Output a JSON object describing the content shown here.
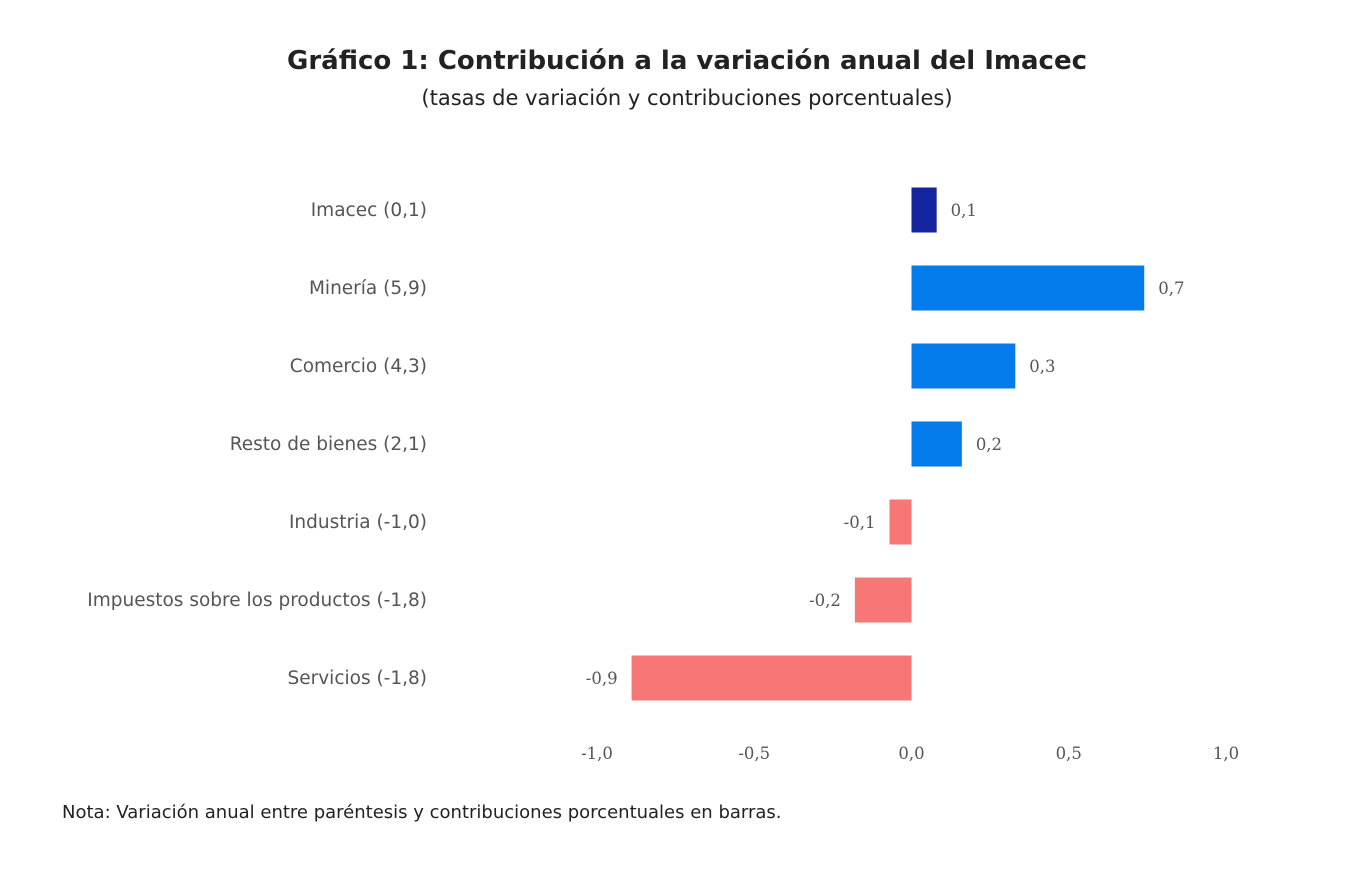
{
  "chart_data": {
    "type": "bar",
    "orientation": "horizontal",
    "title": "Gráfico 1: Contribución a la variación anual del Imacec",
    "subtitle": "(tasas de variación y contribuciones porcentuales)",
    "categories": [
      "Imacec (0,1)",
      "Minería (5,9)",
      "Comercio (4,3)",
      "Resto de bienes (2,1)",
      "Industria (-1,0)",
      "Impuestos sobre los productos (-1,8)",
      "Servicios (-1,8)"
    ],
    "values": [
      0.08,
      0.74,
      0.33,
      0.16,
      -0.07,
      -0.18,
      -0.89
    ],
    "data_labels": [
      "0,1",
      "0,7",
      "0,3",
      "0,2",
      "-0,1",
      "-0,2",
      "-0,9"
    ],
    "colors": [
      "#13249e",
      "#037bea",
      "#037bea",
      "#037bea",
      "#f77777",
      "#f77777",
      "#f77777"
    ],
    "xlim": [
      -1.0,
      1.0
    ],
    "xticks": [
      -1.0,
      -0.5,
      0.0,
      0.5,
      1.0
    ],
    "xtick_labels": [
      "-1,0",
      "-0,5",
      "0,0",
      "0,5",
      "1,0"
    ],
    "grid": false,
    "xlabel": "",
    "ylabel": ""
  },
  "note": "Nota: Variación anual entre paréntesis y contribuciones porcentuales en barras."
}
